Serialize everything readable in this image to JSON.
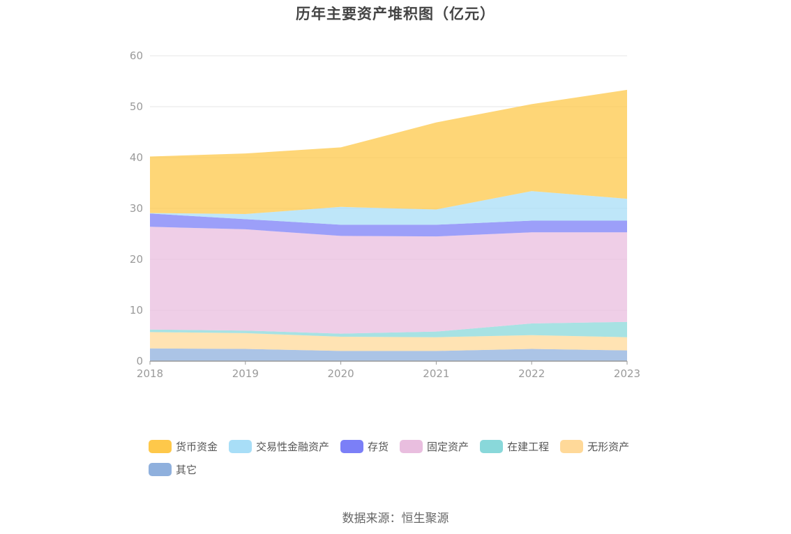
{
  "chart_data": {
    "type": "area",
    "stacked": true,
    "title": "历年主要资产堆积图（亿元）",
    "x": [
      "2018",
      "2019",
      "2020",
      "2021",
      "2022",
      "2023"
    ],
    "ylim": [
      0,
      60
    ],
    "yticks": [
      "0",
      "10",
      "20",
      "30",
      "40",
      "50",
      "60"
    ],
    "grid": true,
    "legend_position": "bottom",
    "series": [
      {
        "name": "其它",
        "color": "#8fb0dd",
        "values": [
          2.5,
          2.4,
          2.0,
          2.0,
          2.4,
          2.1
        ]
      },
      {
        "name": "无形资产",
        "color": "#ffd999",
        "values": [
          3.2,
          3.1,
          2.8,
          2.7,
          2.7,
          2.6
        ]
      },
      {
        "name": "在建工程",
        "color": "#89d8da",
        "values": [
          0.5,
          0.5,
          0.6,
          1.1,
          2.3,
          3.0
        ]
      },
      {
        "name": "固定资产",
        "color": "#e9bedf",
        "values": [
          20.2,
          19.9,
          19.2,
          18.7,
          17.9,
          17.6
        ]
      },
      {
        "name": "存货",
        "color": "#7b7ff7",
        "values": [
          2.6,
          2.0,
          2.2,
          2.3,
          2.3,
          2.3
        ]
      },
      {
        "name": "交易性金融资产",
        "color": "#a8def7",
        "values": [
          0.1,
          1.0,
          3.5,
          3.0,
          5.8,
          4.3
        ]
      },
      {
        "name": "货币资金",
        "color": "#fec84a",
        "values": [
          11.1,
          11.9,
          11.7,
          17.1,
          17.1,
          21.4
        ]
      }
    ]
  },
  "legend_order": [
    "货币资金",
    "交易性金融资产",
    "存货",
    "固定资产",
    "在建工程",
    "无形资产",
    "其它"
  ],
  "source": "数据来源：恒生聚源"
}
